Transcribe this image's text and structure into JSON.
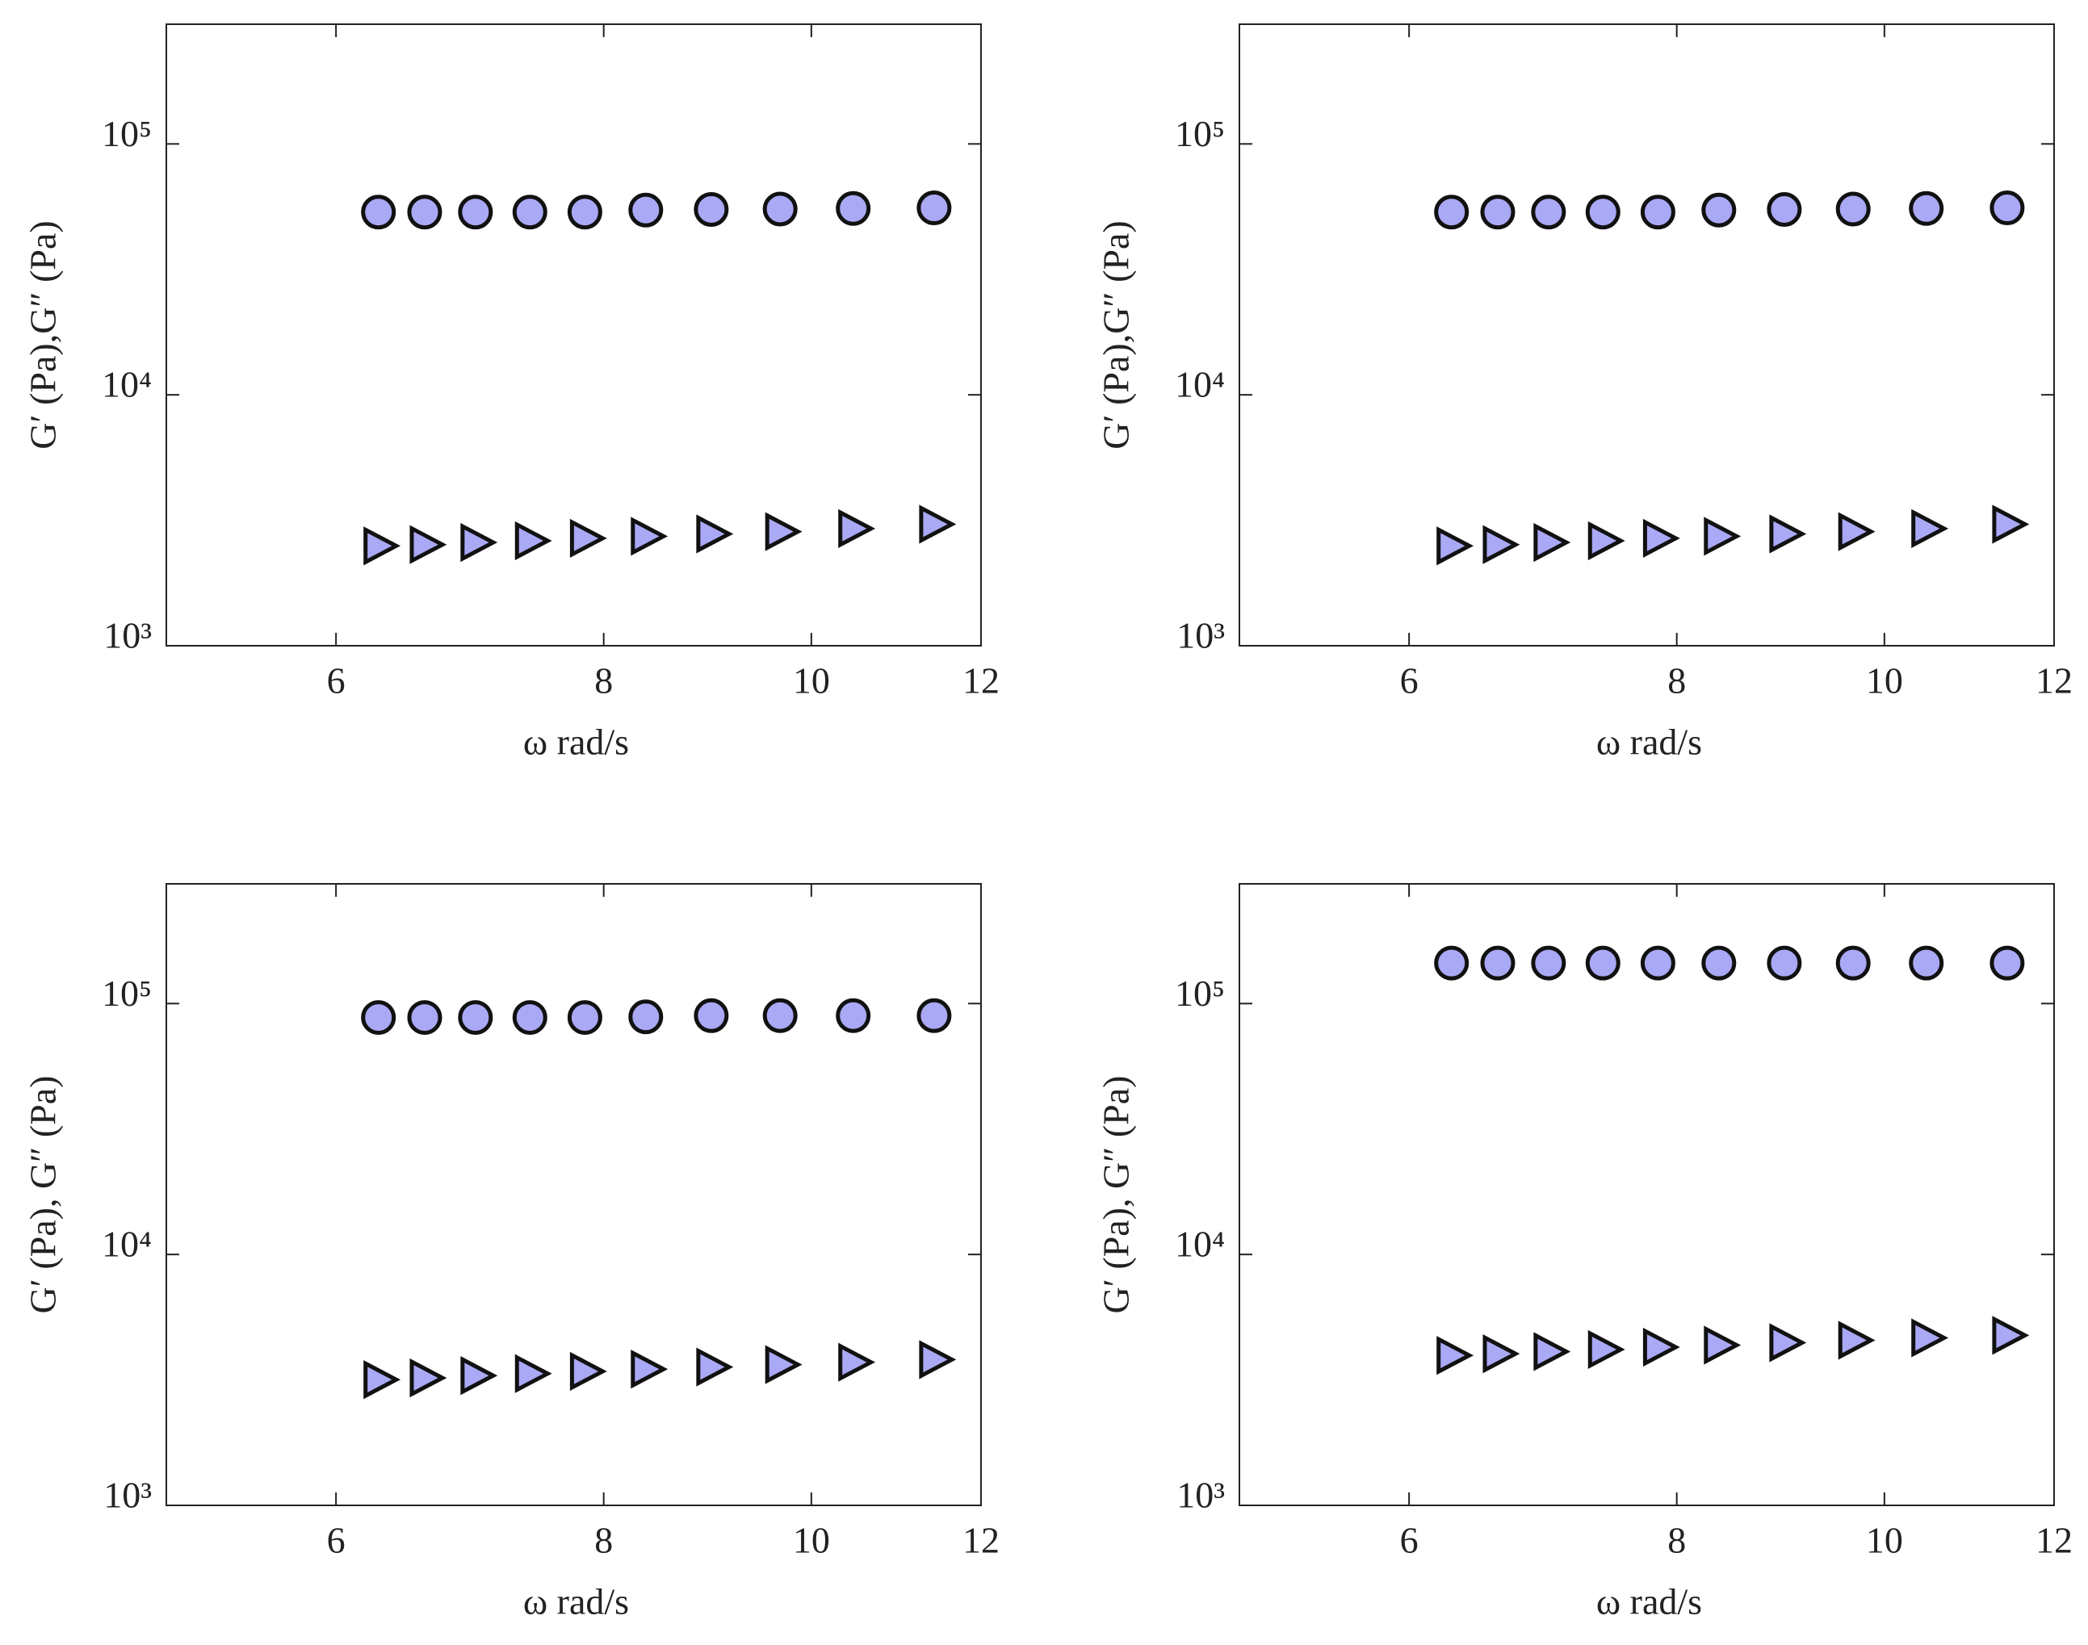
{
  "chart_data": [
    {
      "type": "scatter",
      "xlabel": "ω rad/s",
      "ylabel": "G′ (Pa),G″ (Pa)",
      "xscale": "log",
      "yscale": "log",
      "xlim": [
        5,
        12
      ],
      "ylim": [
        1000,
        300000
      ],
      "xticks": [
        6,
        8,
        10,
        12
      ],
      "yticks": [
        {
          "value": 1000,
          "label": "10³"
        },
        {
          "value": 10000,
          "label": "10⁴"
        },
        {
          "value": 100000,
          "label": "10⁵"
        }
      ],
      "x": [
        6.28,
        6.6,
        6.97,
        7.39,
        7.84,
        8.37,
        8.98,
        9.67,
        10.46,
        11.41
      ],
      "series": [
        {
          "color": "#a9a9f5",
          "marker": "circle",
          "values": [
            53500,
            53500,
            53500,
            53500,
            53500,
            54500,
            54800,
            55000,
            55300,
            55600
          ]
        },
        {
          "color": "#a9a9f5",
          "marker": "triangle-right",
          "values": [
            2500,
            2530,
            2580,
            2620,
            2680,
            2730,
            2790,
            2850,
            2930,
            3050
          ]
        }
      ]
    },
    {
      "type": "scatter",
      "xlabel": "ω rad/s",
      "ylabel": "G′ (Pa),G″ (Pa)",
      "xscale": "log",
      "yscale": "log",
      "xlim": [
        5,
        12
      ],
      "ylim": [
        1000,
        300000
      ],
      "xticks": [
        6,
        8,
        10,
        12
      ],
      "yticks": [
        {
          "value": 1000,
          "label": "10³"
        },
        {
          "value": 10000,
          "label": "10⁴"
        },
        {
          "value": 100000,
          "label": "10⁵"
        }
      ],
      "x": [
        6.28,
        6.6,
        6.97,
        7.39,
        7.84,
        8.37,
        8.98,
        9.67,
        10.46,
        11.41
      ],
      "series": [
        {
          "color": "#a9a9f5",
          "marker": "circle",
          "values": [
            53500,
            53500,
            53500,
            53500,
            53500,
            54500,
            54800,
            55000,
            55300,
            55600
          ]
        },
        {
          "color": "#a9a9f5",
          "marker": "triangle-right",
          "values": [
            2500,
            2530,
            2580,
            2620,
            2680,
            2730,
            2790,
            2850,
            2930,
            3050
          ]
        }
      ]
    },
    {
      "type": "scatter",
      "xlabel": "ω rad/s",
      "ylabel": "G′ (Pa), G″ (Pa)",
      "xscale": "log",
      "yscale": "log",
      "xlim": [
        5,
        12
      ],
      "ylim": [
        1000,
        300000
      ],
      "xticks": [
        6,
        8,
        10,
        12
      ],
      "yticks": [
        {
          "value": 1000,
          "label": "10³"
        },
        {
          "value": 10000,
          "label": "10⁴"
        },
        {
          "value": 100000,
          "label": "10⁵"
        }
      ],
      "x": [
        6.28,
        6.6,
        6.97,
        7.39,
        7.84,
        8.37,
        8.98,
        9.67,
        10.46,
        11.41
      ],
      "series": [
        {
          "color": "#a9a9f5",
          "marker": "circle",
          "values": [
            88000,
            88000,
            88000,
            88000,
            88000,
            88500,
            89500,
            89500,
            89500,
            89500
          ]
        },
        {
          "color": "#a9a9f5",
          "marker": "triangle-right",
          "values": [
            3170,
            3220,
            3290,
            3350,
            3420,
            3490,
            3560,
            3640,
            3720,
            3810
          ]
        }
      ]
    },
    {
      "type": "scatter",
      "xlabel": "ω rad/s",
      "ylabel": "G′ (Pa), G″ (Pa)",
      "xscale": "log",
      "yscale": "log",
      "xlim": [
        5,
        12
      ],
      "ylim": [
        1000,
        300000
      ],
      "xticks": [
        6,
        8,
        10,
        12
      ],
      "yticks": [
        {
          "value": 1000,
          "label": "10³"
        },
        {
          "value": 10000,
          "label": "10⁴"
        },
        {
          "value": 100000,
          "label": "10⁵"
        }
      ],
      "x": [
        6.28,
        6.6,
        6.97,
        7.39,
        7.84,
        8.37,
        8.98,
        9.67,
        10.46,
        11.41
      ],
      "series": [
        {
          "color": "#a9a9f5",
          "marker": "circle",
          "values": [
            145000,
            145000,
            145000,
            145000,
            145000,
            145000,
            145000,
            145000,
            145000,
            145000
          ]
        },
        {
          "color": "#a9a9f5",
          "marker": "triangle-right",
          "values": [
            3960,
            4020,
            4100,
            4180,
            4270,
            4350,
            4450,
            4550,
            4650,
            4760
          ]
        }
      ]
    }
  ]
}
